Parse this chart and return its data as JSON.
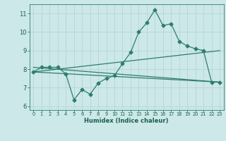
{
  "title": "",
  "xlabel": "Humidex (Indice chaleur)",
  "bg_color": "#cce8e8",
  "line_color": "#2e7d6e",
  "xlim": [
    -0.5,
    23.5
  ],
  "ylim": [
    5.8,
    11.5
  ],
  "yticks": [
    6,
    7,
    8,
    9,
    10,
    11
  ],
  "xticks": [
    0,
    1,
    2,
    3,
    4,
    5,
    6,
    7,
    8,
    9,
    10,
    11,
    12,
    13,
    14,
    15,
    16,
    17,
    18,
    19,
    20,
    21,
    22,
    23
  ],
  "series1_x": [
    0,
    1,
    2,
    3,
    4,
    5,
    6,
    7,
    8,
    9,
    10,
    11,
    12,
    13,
    14,
    15,
    16,
    17,
    18,
    19,
    20,
    21,
    22,
    23
  ],
  "series1_y": [
    7.85,
    8.1,
    8.1,
    8.1,
    7.75,
    6.35,
    6.9,
    6.65,
    7.25,
    7.5,
    7.65,
    8.3,
    8.9,
    10.0,
    10.5,
    11.2,
    10.35,
    10.45,
    9.5,
    9.25,
    9.1,
    9.0,
    7.3,
    7.3
  ],
  "series2_x": [
    0,
    23
  ],
  "series2_y": [
    7.85,
    7.3
  ],
  "series3_x": [
    0,
    23
  ],
  "series3_y": [
    7.85,
    9.0
  ],
  "series4_x": [
    0,
    23
  ],
  "series4_y": [
    8.1,
    7.3
  ]
}
